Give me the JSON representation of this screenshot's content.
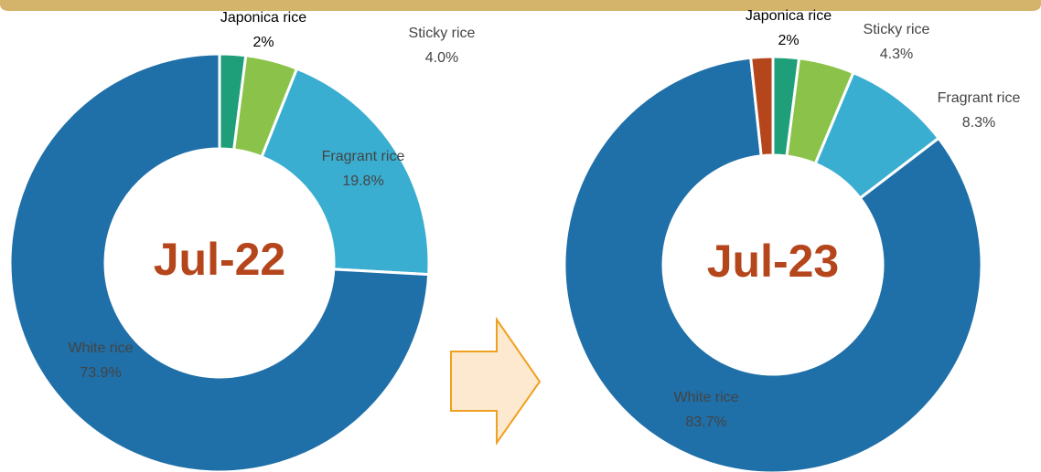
{
  "chart_data": [
    {
      "type": "pie",
      "title": "Jul-22",
      "categories": [
        "Japonica rice",
        "Sticky rice",
        "Fragrant rice",
        "White rice"
      ],
      "values": [
        2,
        4.0,
        19.8,
        73.9
      ],
      "value_labels": [
        "2%",
        "4.0%",
        "19.8%",
        "73.9%"
      ],
      "colors": [
        "#1f9e7a",
        "#8bc34a",
        "#3aaed0",
        "#1f6fa8"
      ]
    },
    {
      "type": "pie",
      "title": "Jul-23",
      "categories": [
        "Japonica rice",
        "Sticky rice",
        "Fragrant rice",
        "White rice",
        null
      ],
      "values": [
        2,
        4.3,
        8.3,
        83.7,
        1.7
      ],
      "value_labels": [
        "2%",
        "4.3%",
        "8.3%",
        "83.7%",
        null
      ],
      "colors": [
        "#1f9e7a",
        "#8bc34a",
        "#3aaed0",
        "#1f6fa8",
        "#b5451b"
      ]
    }
  ]
}
